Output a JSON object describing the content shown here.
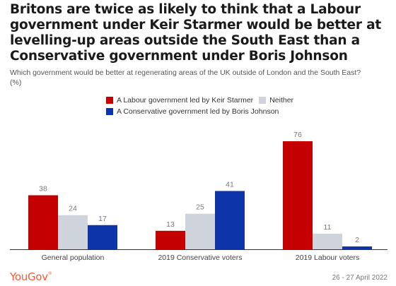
{
  "title": "Britons are twice as likely to think that a Labour government under Keir Starmer would be better at levelling-up areas outside the South East than a Conservative government under Boris Johnson",
  "subtitle": "Which government would be better at regenerating areas of the UK outside of London and the South East?",
  "unit": "(%)",
  "brand": "YouGov",
  "date": "26 - 27 April 2022",
  "colors": {
    "labour": "#c40000",
    "neither": "#cfd3dc",
    "conservative": "#0d34a8"
  },
  "chart_data": {
    "type": "bar",
    "categories": [
      "General population",
      "2019 Conservative voters",
      "2019 Labour voters"
    ],
    "series": [
      {
        "name": "A Labour government led by Keir Starmer",
        "values": [
          38,
          13,
          76
        ],
        "color": "#c40000"
      },
      {
        "name": "Neither",
        "values": [
          24,
          25,
          11
        ],
        "color": "#cfd3dc"
      },
      {
        "name": "A Conservative government led by Boris Johnson",
        "values": [
          17,
          41,
          2
        ],
        "color": "#0d34a8"
      }
    ],
    "ylim": [
      0,
      76
    ],
    "grid": false,
    "legend_position": "top"
  }
}
